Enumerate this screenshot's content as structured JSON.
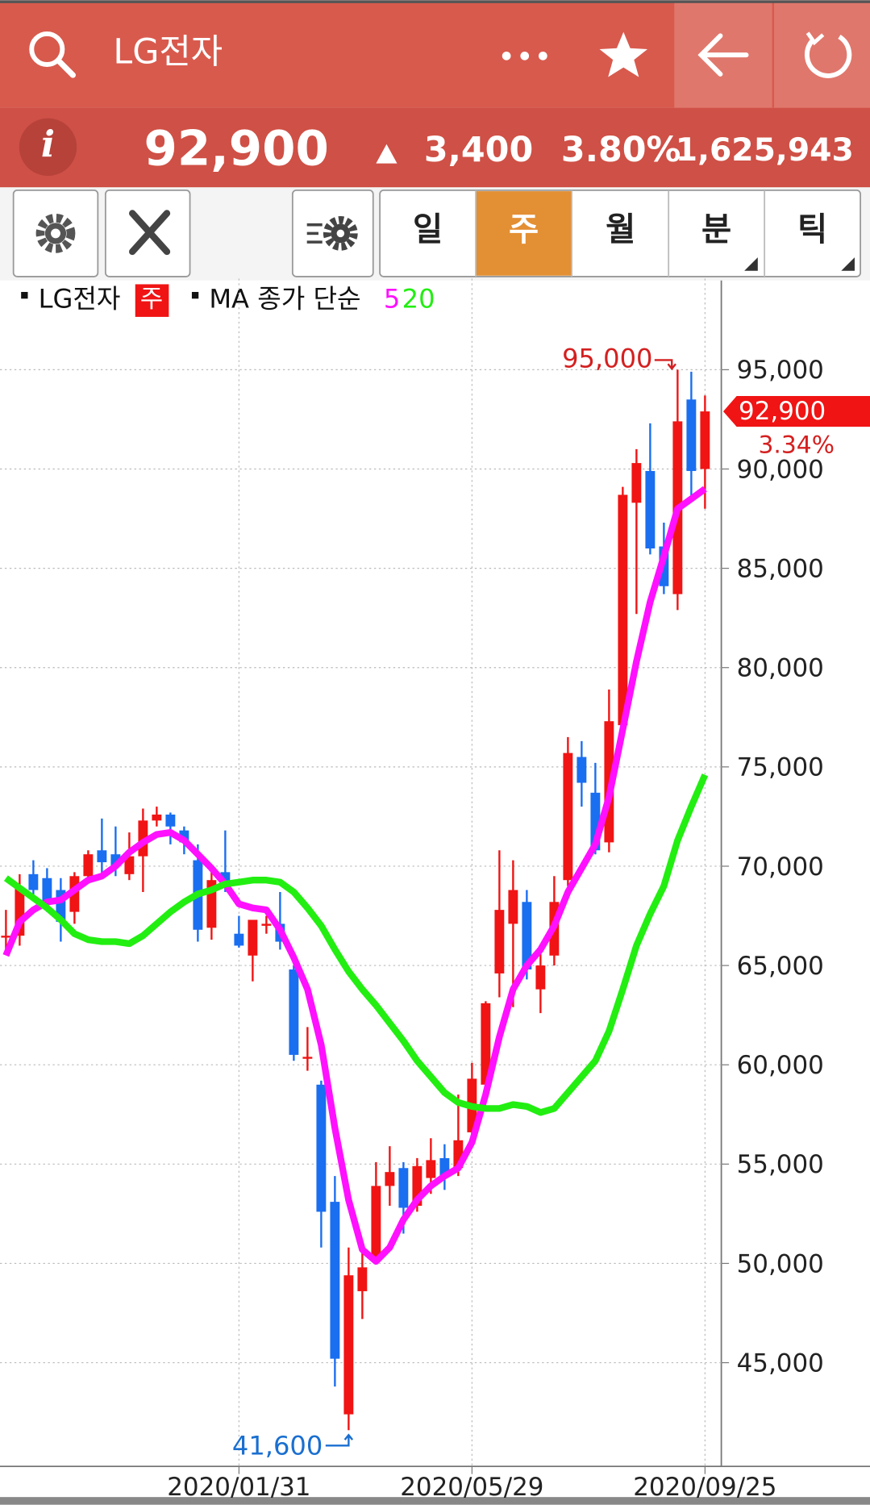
{
  "header": {
    "title": "LG전자"
  },
  "quote": {
    "info": "i",
    "price": "92,900",
    "change": "3,400",
    "change_rate": "3.80%",
    "volume": "1,625,943"
  },
  "tabs": [
    "일",
    "주",
    "월",
    "분",
    "틱"
  ],
  "chart_data": {
    "type": "candlestick",
    "name": "LG전자",
    "period": "주",
    "ma_title": "MA 종가 단순",
    "categories": [
      null,
      null,
      null,
      null,
      null,
      null,
      null,
      null,
      null,
      null,
      null,
      null,
      null,
      null,
      null,
      null,
      null,
      "2020/01/31",
      null,
      null,
      null,
      null,
      null,
      null,
      null,
      null,
      null,
      null,
      null,
      null,
      null,
      null,
      null,
      null,
      "2020/05/29",
      null,
      null,
      null,
      null,
      null,
      null,
      null,
      null,
      null,
      null,
      null,
      null,
      null,
      null,
      null,
      null,
      "2020/09/25"
    ],
    "open": [
      66500,
      66500,
      69600,
      69400,
      68800,
      67700,
      69500,
      70800,
      70600,
      69600,
      70500,
      72300,
      72600,
      71800,
      70300,
      66900,
      69700,
      66600,
      65500,
      67000,
      67100,
      64800,
      60400,
      59000,
      53100,
      42400,
      48600,
      50300,
      53900,
      54800,
      52900,
      54300,
      55300,
      54800,
      56600,
      59000,
      64600,
      67100,
      68200,
      63800,
      65500,
      69300,
      75500,
      73700,
      71200,
      77100,
      88300,
      89900,
      86100,
      83700,
      93500,
      90000
    ],
    "high": [
      67800,
      69600,
      70300,
      69900,
      69400,
      69700,
      70800,
      72400,
      72000,
      71700,
      72900,
      73000,
      72700,
      72000,
      71100,
      69900,
      71800,
      67500,
      67300,
      67500,
      68700,
      65000,
      61900,
      59200,
      54400,
      50800,
      50800,
      55100,
      55900,
      55100,
      55300,
      56300,
      56000,
      58500,
      60100,
      63200,
      70800,
      70300,
      68800,
      66000,
      69500,
      76500,
      76300,
      75200,
      78900,
      89100,
      91000,
      92300,
      87300,
      95000,
      94900,
      93700
    ],
    "low": [
      65800,
      66000,
      68400,
      67700,
      66200,
      67100,
      69200,
      69400,
      69500,
      69300,
      68700,
      72000,
      71100,
      70600,
      66200,
      66300,
      68700,
      65900,
      64200,
      66600,
      65800,
      60200,
      59700,
      50800,
      43800,
      41600,
      47200,
      50100,
      52900,
      51500,
      52600,
      53500,
      53700,
      54400,
      56200,
      58800,
      63400,
      62900,
      64300,
      62600,
      65000,
      69000,
      73000,
      70600,
      70700,
      76600,
      82700,
      85700,
      83700,
      82900,
      88500,
      88000
    ],
    "close": [
      66500,
      68900,
      68800,
      68200,
      67200,
      69500,
      70600,
      70200,
      70000,
      70500,
      72300,
      72600,
      72000,
      71200,
      66800,
      69300,
      69000,
      66000,
      67300,
      67100,
      66200,
      60500,
      60400,
      52600,
      45200,
      49400,
      49800,
      53900,
      54600,
      52800,
      54900,
      55200,
      54400,
      56200,
      59300,
      63100,
      67800,
      68800,
      64800,
      65000,
      68200,
      75700,
      74200,
      70800,
      77300,
      88700,
      90300,
      86000,
      84100,
      92400,
      89900,
      92900
    ],
    "up_color": "#f01414",
    "down_color": "#1a6ef0",
    "series": [
      {
        "name": "5",
        "color": "#ff10ff",
        "values": [
          65500,
          67200,
          67800,
          68200,
          68300,
          68800,
          69300,
          69500,
          70000,
          70700,
          71200,
          71600,
          71700,
          71300,
          70600,
          69900,
          69100,
          68100,
          67900,
          67800,
          66800,
          65400,
          63800,
          61000,
          56800,
          53200,
          50700,
          50100,
          50800,
          52200,
          53200,
          53900,
          54400,
          54800,
          56100,
          58500,
          61400,
          63800,
          65000,
          65800,
          67000,
          68700,
          69900,
          71100,
          73500,
          76900,
          80300,
          83300,
          85600,
          88000,
          88500,
          89000
        ]
      },
      {
        "name": "20",
        "color": "#22ee11",
        "values": [
          69400,
          68900,
          68400,
          67900,
          67300,
          66600,
          66300,
          66200,
          66200,
          66100,
          66500,
          67100,
          67700,
          68200,
          68600,
          68800,
          69100,
          69200,
          69300,
          69300,
          69200,
          68700,
          67900,
          67000,
          65800,
          64700,
          63800,
          63000,
          62100,
          61200,
          60200,
          59400,
          58600,
          58100,
          57900,
          57800,
          57800,
          58000,
          57900,
          57600,
          57800,
          58600,
          59400,
          60200,
          61700,
          63800,
          66000,
          67600,
          69000,
          71300,
          73000,
          74600
        ]
      }
    ],
    "ylim": [
      39780,
      99350
    ],
    "yticks": [
      {
        "value": 45000,
        "label": "45,000"
      },
      {
        "value": 50000,
        "label": "50,000"
      },
      {
        "value": 55000,
        "label": "55,000"
      },
      {
        "value": 60000,
        "label": "60,000"
      },
      {
        "value": 65000,
        "label": "65,000"
      },
      {
        "value": 70000,
        "label": "70,000"
      },
      {
        "value": 75000,
        "label": "75,000"
      },
      {
        "value": 80000,
        "label": "80,000"
      },
      {
        "value": 85000,
        "label": "85,000"
      },
      {
        "value": 90000,
        "label": "90,000"
      },
      {
        "value": 95000,
        "label": "95,000"
      }
    ],
    "grid": true,
    "annotations": {
      "max": {
        "value": 95000,
        "label": "95,000"
      },
      "min": {
        "value": 41600,
        "label": "41,600"
      },
      "last": {
        "value": 92900,
        "label": "92,900",
        "change": "3.34%"
      }
    }
  }
}
